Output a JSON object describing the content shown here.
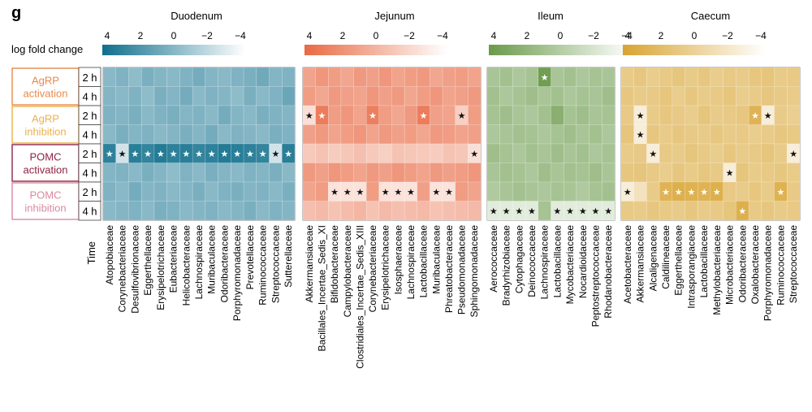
{
  "panel_letter": "g",
  "legend_title": "log fold change",
  "time_axis_label": "Time",
  "conditions": [
    {
      "name": "AgRP\nactivation",
      "color": "#e8894a"
    },
    {
      "name": "AgRP\ninhibition",
      "color": "#e9b24a"
    },
    {
      "name": "POMC\nactivation",
      "color": "#8e2443"
    },
    {
      "name": "POMC\ninhibition",
      "color": "#d98aa0"
    }
  ],
  "times": [
    "2 h",
    "4 h",
    "2 h",
    "4 h",
    "2 h",
    "4 h",
    "2 h",
    "4 h"
  ],
  "chart_data": [
    {
      "type": "heatmap",
      "title": "Duodenum",
      "scale_ticks": [
        "4",
        "2",
        "0",
        "−2",
        "−4"
      ],
      "color_low": "#ffffff",
      "color_high": "#0f6f8c",
      "categories": [
        "Atopobiaceae",
        "Corynebacteriaceae",
        "Desulfovibrionaceae",
        "Eggerthellaceae",
        "Erysipelotrichaceae",
        "Eubacteriaceae",
        "Helicobacteraceae",
        "Lachnospiraceae",
        "Muribaculaceae",
        "Odoribacteraceae",
        "Porphyromonadaceae",
        "Prevotellaceae",
        "Ruminococcaceae",
        "Streptococcaceae",
        "Sutterellaceae"
      ],
      "values": [
        [
          1.6,
          1.8,
          1.5,
          1.9,
          1.7,
          1.6,
          1.8,
          2.0,
          1.7,
          1.6,
          1.8,
          1.9,
          2.1,
          1.7,
          1.8
        ],
        [
          1.7,
          1.6,
          1.8,
          1.5,
          1.9,
          1.7,
          2.0,
          1.6,
          1.8,
          1.7,
          1.5,
          1.9,
          1.6,
          1.8,
          2.2
        ],
        [
          1.8,
          1.7,
          1.9,
          1.6,
          1.8,
          1.9,
          1.7,
          1.8,
          1.6,
          2.0,
          1.7,
          1.6,
          1.9,
          1.8,
          1.7
        ],
        [
          1.6,
          1.9,
          1.7,
          1.8,
          1.6,
          1.7,
          1.9,
          1.7,
          2.0,
          1.6,
          1.8,
          1.7,
          1.6,
          1.9,
          1.8
        ],
        [
          3.4,
          0.2,
          3.5,
          3.3,
          3.6,
          3.4,
          3.5,
          3.3,
          3.4,
          3.6,
          3.5,
          3.4,
          3.3,
          0.2,
          3.5
        ],
        [
          1.7,
          1.8,
          1.6,
          1.9,
          1.7,
          1.5,
          1.8,
          1.6,
          1.9,
          1.7,
          1.6,
          1.8,
          1.7,
          1.9,
          1.6
        ],
        [
          1.8,
          1.6,
          2.0,
          1.7,
          1.8,
          1.6,
          1.7,
          1.9,
          1.6,
          1.8,
          1.9,
          1.7,
          1.8,
          1.6,
          1.9
        ],
        [
          1.6,
          1.7,
          1.8,
          1.6,
          1.9,
          1.8,
          1.6,
          1.7,
          1.8,
          1.6,
          1.7,
          1.9,
          1.6,
          1.8,
          1.7
        ]
      ],
      "stars": [
        [
          4,
          0
        ],
        [
          4,
          1
        ],
        [
          4,
          2
        ],
        [
          4,
          3
        ],
        [
          4,
          4
        ],
        [
          4,
          5
        ],
        [
          4,
          6
        ],
        [
          4,
          7
        ],
        [
          4,
          8
        ],
        [
          4,
          9
        ],
        [
          4,
          10
        ],
        [
          4,
          11
        ],
        [
          4,
          12
        ],
        [
          4,
          13
        ],
        [
          4,
          14
        ]
      ]
    },
    {
      "type": "heatmap",
      "title": "Jejunum",
      "scale_ticks": [
        "4",
        "2",
        "0",
        "−2",
        "−4"
      ],
      "color_low": "#ffffff",
      "color_high": "#e86a44",
      "categories": [
        "Akkermansiaceae",
        "Bacillales_Incertae_Sedis_XI",
        "Bifidobacteraceae",
        "Campylobacteraceae",
        "Clostridiales_Incertae_Sedis_XIII",
        "Corynebacteriaceae",
        "Erysipelotrichaceae",
        "Isosphaeraceae",
        "Lachnospiraceae",
        "Lactobacillaceae",
        "Muribaculaceae",
        "Phreatobacteraceae",
        "Pseudomonadaceae",
        "Sphingomonadaceae"
      ],
      "values": [
        [
          2.2,
          2.6,
          2.4,
          2.1,
          2.5,
          2.3,
          2.6,
          2.2,
          2.4,
          2.5,
          2.1,
          2.3,
          2.4,
          2.2
        ],
        [
          2.4,
          2.1,
          2.5,
          2.3,
          2.2,
          2.6,
          2.3,
          2.5,
          2.1,
          2.4,
          2.6,
          2.2,
          2.3,
          2.5
        ],
        [
          0.3,
          3.4,
          2.4,
          2.6,
          2.2,
          3.3,
          2.4,
          2.1,
          2.5,
          3.4,
          2.3,
          2.2,
          0.8,
          2.4
        ],
        [
          2.3,
          2.5,
          2.2,
          2.4,
          2.6,
          2.2,
          2.5,
          2.3,
          2.4,
          2.1,
          2.5,
          2.4,
          2.2,
          2.3
        ],
        [
          1.0,
          1.2,
          0.9,
          1.1,
          1.3,
          1.0,
          0.8,
          1.2,
          1.1,
          1.0,
          0.9,
          1.2,
          1.1,
          0.3
        ],
        [
          2.5,
          2.3,
          2.6,
          2.4,
          2.2,
          2.5,
          2.3,
          2.6,
          2.4,
          2.2,
          2.5,
          2.3,
          2.4,
          2.6
        ],
        [
          2.2,
          2.4,
          0.2,
          0.2,
          0.2,
          2.4,
          0.2,
          0.2,
          0.2,
          2.3,
          0.2,
          0.2,
          2.4,
          2.2
        ],
        [
          1.3,
          1.5,
          1.2,
          1.4,
          1.6,
          1.2,
          1.5,
          1.3,
          1.4,
          1.5,
          1.2,
          1.3,
          1.4,
          1.5
        ]
      ],
      "stars": [
        [
          2,
          0
        ],
        [
          2,
          1
        ],
        [
          2,
          5
        ],
        [
          2,
          9
        ],
        [
          2,
          12
        ],
        [
          4,
          13
        ],
        [
          6,
          2
        ],
        [
          6,
          3
        ],
        [
          6,
          4
        ],
        [
          6,
          6
        ],
        [
          6,
          7
        ],
        [
          6,
          8
        ],
        [
          6,
          10
        ],
        [
          6,
          11
        ]
      ]
    },
    {
      "type": "heatmap",
      "title": "Ileum",
      "scale_ticks": [
        "4",
        "2",
        "0",
        "−2",
        "−4"
      ],
      "color_low": "#ffffff",
      "color_high": "#6a9a4a",
      "categories": [
        "Aerococcaceae",
        "Bradyrhizobiaceae",
        "Cytophagaceae",
        "Deinococcaceae",
        "Lachnospiraceae",
        "Lactobacillaceae",
        "Mycobacteriaceae",
        "Nocardioidaceae",
        "Peptostreptococcaceae",
        "Rhodanobacteraceae"
      ],
      "values": [
        [
          2.0,
          2.2,
          1.9,
          2.1,
          3.8,
          2.0,
          2.2,
          1.9,
          2.1,
          2.0
        ],
        [
          2.2,
          1.9,
          2.1,
          2.3,
          2.0,
          2.2,
          1.9,
          2.1,
          2.0,
          2.3
        ],
        [
          2.1,
          2.3,
          2.0,
          1.9,
          2.2,
          3.0,
          2.1,
          2.3,
          2.0,
          2.1
        ],
        [
          1.9,
          2.0,
          2.2,
          2.1,
          1.9,
          2.1,
          2.3,
          2.0,
          2.2,
          1.9
        ],
        [
          2.3,
          2.1,
          1.9,
          2.2,
          2.0,
          2.3,
          2.0,
          2.2,
          1.9,
          2.1
        ],
        [
          2.0,
          2.2,
          2.1,
          1.9,
          2.3,
          2.0,
          2.2,
          2.1,
          2.3,
          2.0
        ],
        [
          1.8,
          2.0,
          2.2,
          2.0,
          1.9,
          2.1,
          2.0,
          1.8,
          2.1,
          2.2
        ],
        [
          0.2,
          0.2,
          0.2,
          0.2,
          2.1,
          0.2,
          0.2,
          0.2,
          0.2,
          0.2
        ]
      ],
      "stars": [
        [
          0,
          4
        ],
        [
          7,
          0
        ],
        [
          7,
          1
        ],
        [
          7,
          2
        ],
        [
          7,
          3
        ],
        [
          7,
          5
        ],
        [
          7,
          6
        ],
        [
          7,
          7
        ],
        [
          7,
          8
        ],
        [
          7,
          9
        ]
      ]
    },
    {
      "type": "heatmap",
      "title": "Caecum",
      "scale_ticks": [
        "4",
        "2",
        "0",
        "−2",
        "−4"
      ],
      "color_low": "#ffffff",
      "color_high": "#d8a432",
      "categories": [
        "Acetobacteraceae",
        "Akkermansiaceae",
        "Alcaligenaceae",
        "Caldilineaceae",
        "Eggerthellaceae",
        "Intrasporangiaceae",
        "Lactobacillaceae",
        "Methylobacteriaceae",
        "Microbacteriaceae",
        "Odoribacteraceae",
        "Oxalobacteraceae",
        "Porphyromonadaceae",
        "Ruminococcaceae",
        "Streptococcaceae"
      ],
      "values": [
        [
          2.0,
          2.2,
          1.9,
          2.1,
          2.3,
          2.0,
          2.2,
          1.9,
          2.1,
          2.0,
          2.2,
          2.3,
          2.0,
          2.1
        ],
        [
          2.2,
          2.0,
          2.1,
          2.3,
          1.9,
          2.2,
          2.0,
          2.1,
          2.3,
          1.9,
          2.0,
          2.2,
          2.1,
          2.0
        ],
        [
          2.1,
          0.2,
          2.0,
          2.2,
          2.1,
          1.9,
          2.3,
          2.0,
          2.1,
          2.2,
          3.2,
          0.2,
          2.0,
          1.8
        ],
        [
          2.3,
          0.2,
          2.2,
          2.0,
          2.2,
          2.1,
          2.0,
          2.2,
          2.0,
          2.1,
          1.9,
          2.0,
          2.2,
          2.1
        ],
        [
          2.0,
          2.1,
          0.2,
          2.1,
          2.0,
          2.3,
          2.1,
          1.9,
          2.2,
          2.0,
          2.1,
          2.3,
          2.0,
          0.2
        ],
        [
          2.2,
          2.3,
          2.1,
          1.9,
          2.2,
          2.0,
          2.2,
          2.1,
          0.2,
          2.3,
          2.0,
          2.1,
          2.2,
          2.0
        ],
        [
          0.2,
          0.8,
          2.0,
          3.2,
          3.4,
          3.3,
          3.2,
          3.4,
          2.1,
          2.0,
          2.2,
          2.0,
          3.3,
          2.1
        ],
        [
          2.1,
          2.0,
          2.2,
          2.1,
          2.0,
          2.2,
          2.0,
          2.1,
          2.3,
          3.4,
          2.1,
          2.2,
          2.0,
          2.1
        ]
      ],
      "stars": [
        [
          2,
          1
        ],
        [
          2,
          10
        ],
        [
          2,
          11
        ],
        [
          3,
          1
        ],
        [
          4,
          2
        ],
        [
          4,
          13
        ],
        [
          5,
          8
        ],
        [
          6,
          0
        ],
        [
          6,
          3
        ],
        [
          6,
          4
        ],
        [
          6,
          5
        ],
        [
          6,
          6
        ],
        [
          6,
          7
        ],
        [
          6,
          12
        ],
        [
          7,
          9
        ]
      ]
    }
  ]
}
